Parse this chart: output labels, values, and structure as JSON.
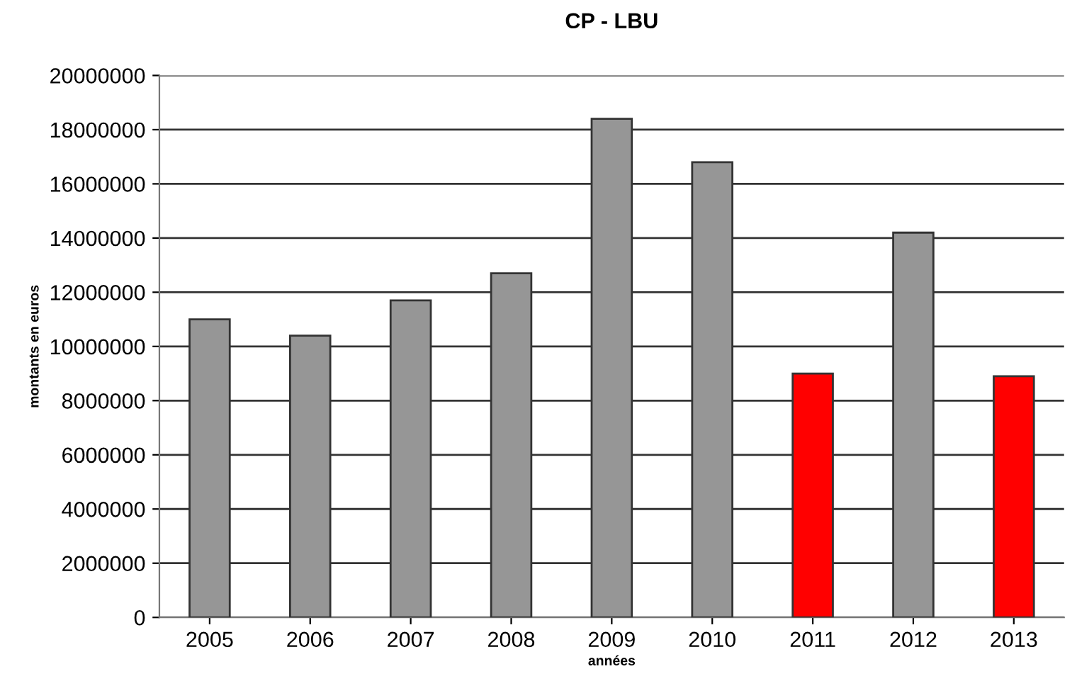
{
  "chart_data": {
    "type": "bar",
    "title": "CP - LBU",
    "xlabel": "années",
    "ylabel": "montants en euros",
    "categories": [
      "2005",
      "2006",
      "2007",
      "2008",
      "2009",
      "2010",
      "2011",
      "2012",
      "2013"
    ],
    "values": [
      11000000,
      10400000,
      11700000,
      12700000,
      18400000,
      16800000,
      9000000,
      14200000,
      8900000
    ],
    "colors": [
      "#969696",
      "#969696",
      "#969696",
      "#969696",
      "#969696",
      "#969696",
      "#ff0000",
      "#969696",
      "#ff0000"
    ],
    "ylim": [
      0,
      20000000
    ],
    "yticks": [
      0,
      2000000,
      4000000,
      6000000,
      8000000,
      10000000,
      12000000,
      14000000,
      16000000,
      18000000,
      20000000
    ],
    "grid": "y"
  }
}
